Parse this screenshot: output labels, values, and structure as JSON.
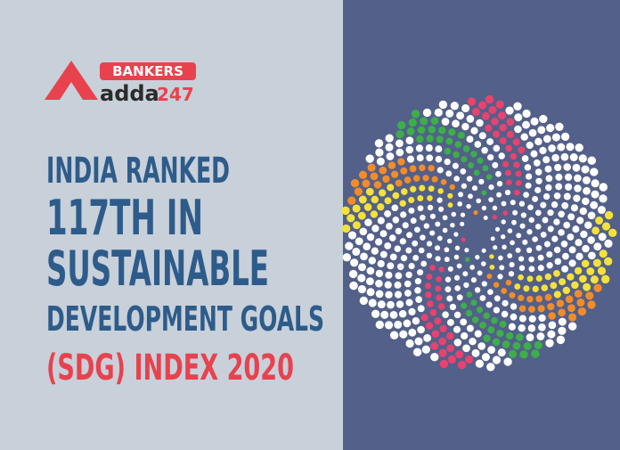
{
  "logo": {
    "badge": "BANKERS",
    "name": "adda",
    "number": "247"
  },
  "headline": {
    "lines": [
      "INDIA RANKED",
      "117TH IN",
      "SUSTAINABLE",
      "DEVELOPMENT GOALS",
      "(SDG) INDEX 2020"
    ]
  }
}
